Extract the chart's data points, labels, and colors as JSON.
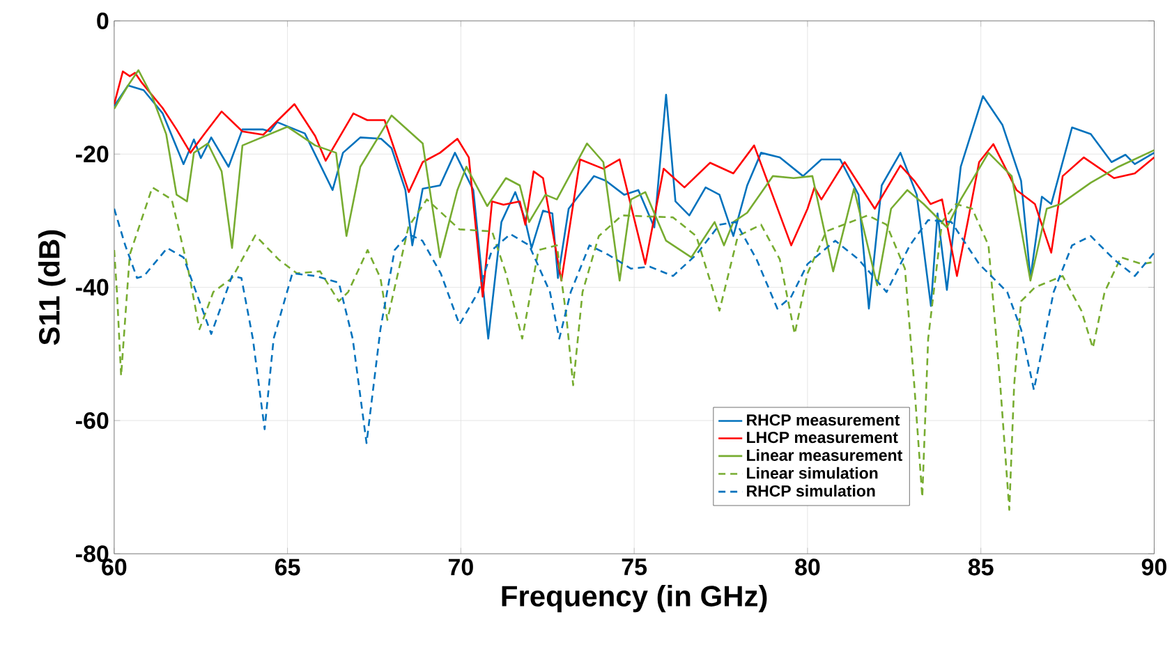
{
  "chart_data": {
    "type": "line",
    "xlabel": "Frequency (in GHz)",
    "ylabel": "S11 (dB)",
    "xlim": [
      60,
      90
    ],
    "xticks": [
      60,
      65,
      70,
      75,
      80,
      85,
      90
    ],
    "ylim": [
      -80,
      0
    ],
    "yticks": [
      -80,
      -60,
      -40,
      -20,
      0
    ],
    "grid": true,
    "legend": "bottom right",
    "series": [
      {
        "name": "RHCP measurement",
        "color": "#0072bd",
        "line_style": "solid",
        "x": [
          60,
          60.4,
          60.85,
          61.4,
          62.0,
          62.3,
          62.5,
          62.8,
          63.3,
          63.7,
          64.3,
          64.5,
          64.7,
          65.5,
          66.3,
          66.6,
          67.1,
          67.7,
          68.0,
          68.4,
          68.6,
          68.9,
          69.4,
          69.83,
          70.36,
          70.79,
          71.17,
          71.57,
          71.84,
          72.04,
          72.37,
          72.64,
          72.8,
          73.11,
          73.84,
          74.18,
          74.71,
          75.12,
          75.58,
          75.92,
          76.19,
          76.59,
          77.06,
          77.46,
          77.86,
          78.26,
          78.66,
          79.2,
          79.87,
          80.4,
          80.94,
          81.47,
          81.77,
          82.14,
          82.68,
          83.15,
          83.56,
          83.75,
          84.02,
          84.42,
          85.06,
          85.62,
          86.16,
          86.43,
          86.76,
          87.03,
          87.63,
          88.17,
          88.77,
          89.17,
          89.44,
          90.0
        ],
        "values": [
          -12.8,
          -9.7,
          -10.4,
          -13.9,
          -21.5,
          -17.8,
          -20.6,
          -17.5,
          -21.9,
          -16.3,
          -16.3,
          -16.6,
          -15.2,
          -16.9,
          -25.4,
          -19.8,
          -17.5,
          -17.7,
          -19.1,
          -25.4,
          -33.7,
          -25.2,
          -24.7,
          -19.8,
          -25.4,
          -47.7,
          -30.2,
          -25.7,
          -29.6,
          -34.1,
          -28.5,
          -28.9,
          -38.6,
          -28.2,
          -23.3,
          -24.0,
          -26.1,
          -25.4,
          -31.0,
          -11.1,
          -27.1,
          -29.2,
          -25.0,
          -26.1,
          -32.3,
          -24.7,
          -19.8,
          -20.5,
          -23.3,
          -20.8,
          -20.8,
          -26.1,
          -43.2,
          -24.7,
          -19.8,
          -26.1,
          -42.8,
          -28.9,
          -40.4,
          -21.9,
          -11.3,
          -15.6,
          -24.0,
          -38.6,
          -26.4,
          -27.5,
          -16.0,
          -17.0,
          -21.2,
          -20.1,
          -21.5,
          -19.8
        ]
      },
      {
        "name": "LHCP measurement",
        "color": "#ff0000",
        "line_style": "solid",
        "x": [
          60,
          60.25,
          60.45,
          60.6,
          60.8,
          61.4,
          61.8,
          62.2,
          62.6,
          63.1,
          63.7,
          64.3,
          65.2,
          65.8,
          66.1,
          66.9,
          67.3,
          67.8,
          68.5,
          68.9,
          69.4,
          69.9,
          70.23,
          70.63,
          70.9,
          71.23,
          71.7,
          71.86,
          72.1,
          72.37,
          72.9,
          73.44,
          74.11,
          74.58,
          75.32,
          75.85,
          76.45,
          77.19,
          77.86,
          78.46,
          79.53,
          80.0,
          80.2,
          80.4,
          81.07,
          81.94,
          82.68,
          83.08,
          83.55,
          83.88,
          84.31,
          84.62,
          84.95,
          85.36,
          86.03,
          86.56,
          87.03,
          87.36,
          87.97,
          88.84,
          89.44,
          90.0
        ],
        "values": [
          -12.5,
          -7.6,
          -8.3,
          -7.8,
          -9.3,
          -13.1,
          -16.3,
          -19.8,
          -17.0,
          -13.6,
          -16.6,
          -17.1,
          -12.5,
          -17.3,
          -21.0,
          -13.9,
          -14.9,
          -14.9,
          -25.7,
          -21.2,
          -19.8,
          -17.7,
          -20.5,
          -41.4,
          -27.1,
          -27.6,
          -27.1,
          -30.6,
          -22.6,
          -23.6,
          -39.0,
          -20.8,
          -22.2,
          -20.8,
          -36.5,
          -22.2,
          -25.0,
          -21.3,
          -22.9,
          -18.7,
          -33.7,
          -28.2,
          -25.0,
          -26.8,
          -21.2,
          -28.2,
          -21.7,
          -24.0,
          -27.5,
          -26.8,
          -38.3,
          -30.2,
          -21.2,
          -18.5,
          -25.4,
          -27.5,
          -34.8,
          -23.3,
          -20.5,
          -23.6,
          -22.9,
          -20.5
        ]
      },
      {
        "name": "Linear measurement",
        "color": "#77ac30",
        "line_style": "solid",
        "x": [
          60,
          60.4,
          60.7,
          61.1,
          61.5,
          61.8,
          62.1,
          62.3,
          62.7,
          63.1,
          63.4,
          63.7,
          65.0,
          65.8,
          66.4,
          66.7,
          67.1,
          68.0,
          68.9,
          69.4,
          69.9,
          70.16,
          70.76,
          71.3,
          71.7,
          71.97,
          72.44,
          72.77,
          73.64,
          74.11,
          74.58,
          74.91,
          75.32,
          75.92,
          76.65,
          77.32,
          77.59,
          77.86,
          78.26,
          79.0,
          79.6,
          80.14,
          80.74,
          81.34,
          82.01,
          82.41,
          82.88,
          83.35,
          84.02,
          84.42,
          85.22,
          85.89,
          86.43,
          86.9,
          87.3,
          88.17,
          88.97,
          90.0
        ],
        "values": [
          -13.2,
          -9.7,
          -7.4,
          -11.4,
          -17.0,
          -26.1,
          -27.1,
          -19.8,
          -18.4,
          -22.6,
          -34.1,
          -18.7,
          -15.9,
          -18.7,
          -19.8,
          -32.3,
          -21.9,
          -14.2,
          -18.4,
          -35.5,
          -25.4,
          -21.9,
          -27.8,
          -23.6,
          -24.7,
          -30.2,
          -26.1,
          -26.8,
          -18.4,
          -21.2,
          -39.0,
          -26.8,
          -25.7,
          -33.0,
          -35.5,
          -30.2,
          -33.7,
          -30.2,
          -28.8,
          -23.3,
          -23.6,
          -23.3,
          -37.6,
          -25.2,
          -39.7,
          -28.2,
          -25.4,
          -27.5,
          -31.0,
          -26.8,
          -19.8,
          -23.3,
          -39.0,
          -28.2,
          -27.5,
          -24.3,
          -21.9,
          -19.4
        ]
      },
      {
        "name": "Linear simulation",
        "color": "#77ac30",
        "line_style": "dashed",
        "x": [
          60,
          60.08,
          60.2,
          60.45,
          61.1,
          61.66,
          62.13,
          62.46,
          62.86,
          63.4,
          64.07,
          64.74,
          65.27,
          65.94,
          66.48,
          66.75,
          67.31,
          67.68,
          67.88,
          68.49,
          69.02,
          69.96,
          70.9,
          71.3,
          71.77,
          72.24,
          72.77,
          73.04,
          73.24,
          73.51,
          73.98,
          74.65,
          76.12,
          76.79,
          77.46,
          77.99,
          78.66,
          79.2,
          79.63,
          80.0,
          80.54,
          81.74,
          82.28,
          82.81,
          83.08,
          83.31,
          83.48,
          83.88,
          84.28,
          84.75,
          85.22,
          85.56,
          85.82,
          85.96,
          86.16,
          86.56,
          87.36,
          87.9,
          88.23,
          88.57,
          89.04,
          89.64,
          90.0
        ],
        "values": [
          -34.4,
          -40.7,
          -53.3,
          -35.1,
          -25.0,
          -26.8,
          -37.2,
          -46.3,
          -40.7,
          -38.6,
          -32.2,
          -35.8,
          -37.9,
          -37.6,
          -42.1,
          -40.7,
          -34.4,
          -38.6,
          -44.9,
          -30.9,
          -26.8,
          -31.3,
          -31.6,
          -37.9,
          -47.7,
          -34.4,
          -33.7,
          -44.2,
          -54.7,
          -40.7,
          -32.3,
          -29.2,
          -29.5,
          -32.3,
          -43.5,
          -32.3,
          -30.6,
          -35.8,
          -47.0,
          -37.9,
          -31.6,
          -29.2,
          -30.6,
          -37.2,
          -54.7,
          -71.5,
          -47.7,
          -30.2,
          -27.5,
          -28.2,
          -33.7,
          -54.7,
          -73.4,
          -54.7,
          -42.1,
          -40.0,
          -38.3,
          -43.5,
          -49.1,
          -40.7,
          -35.5,
          -36.5,
          -36.2
        ]
      },
      {
        "name": "RHCP simulation",
        "color": "#0072bd",
        "line_style": "dashed",
        "x": [
          60,
          60.32,
          60.66,
          60.86,
          61.53,
          62.0,
          62.46,
          62.8,
          63.4,
          63.67,
          64.0,
          64.34,
          64.6,
          65.14,
          65.81,
          66.48,
          66.88,
          67.28,
          67.68,
          68.09,
          68.49,
          68.89,
          69.42,
          69.96,
          70.5,
          70.9,
          71.43,
          71.97,
          72.57,
          72.84,
          73.17,
          73.71,
          74.25,
          74.91,
          75.45,
          76.12,
          76.79,
          77.46,
          77.93,
          78.53,
          79.13,
          79.53,
          80.0,
          80.8,
          81.47,
          82.28,
          82.95,
          83.48,
          84.15,
          84.95,
          85.76,
          86.16,
          86.53,
          87.1,
          87.63,
          88.17,
          88.84,
          89.44,
          90.0
        ],
        "values": [
          -28.2,
          -33.7,
          -38.6,
          -38.3,
          -34.1,
          -35.5,
          -42.1,
          -47.0,
          -38.3,
          -38.6,
          -47.7,
          -61.3,
          -47.7,
          -37.9,
          -38.3,
          -39.3,
          -47.7,
          -63.4,
          -46.3,
          -34.4,
          -32.0,
          -33.0,
          -37.9,
          -45.6,
          -40.7,
          -34.4,
          -32.0,
          -33.7,
          -40.7,
          -47.7,
          -40.7,
          -33.7,
          -35.1,
          -37.2,
          -36.9,
          -38.3,
          -35.1,
          -30.6,
          -30.2,
          -35.8,
          -43.2,
          -41.4,
          -36.5,
          -33.0,
          -35.8,
          -40.7,
          -33.7,
          -29.9,
          -30.2,
          -36.5,
          -40.7,
          -46.3,
          -55.4,
          -40.7,
          -33.7,
          -32.3,
          -35.8,
          -38.3,
          -34.8
        ]
      }
    ]
  }
}
